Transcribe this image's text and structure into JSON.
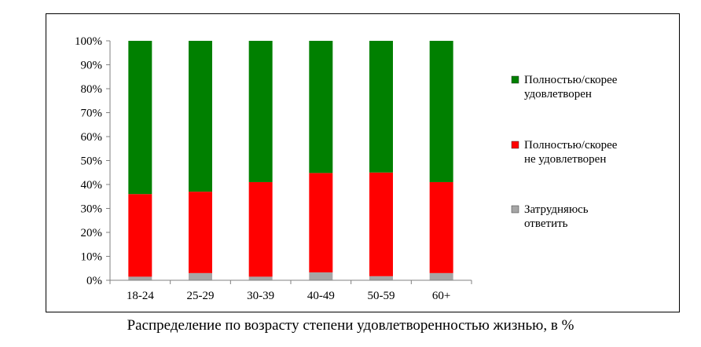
{
  "chart_data": {
    "type": "bar",
    "stacked": true,
    "categories": [
      "18-24",
      "25-29",
      "30-39",
      "40-49",
      "50-59",
      "60+"
    ],
    "series": [
      {
        "name": "Затрудняюсь ответить",
        "color": "#a6a6a6",
        "values": [
          1.5,
          3,
          1.5,
          3.3,
          1.7,
          3
        ]
      },
      {
        "name": "Полностью/скорее не удовлетворен",
        "color": "#ff0000",
        "values": [
          34.5,
          34,
          39.5,
          41.5,
          43.3,
          38
        ]
      },
      {
        "name": "Полностью/скорее удовлетворен",
        "color": "#008000",
        "values": [
          64,
          63,
          59,
          55.2,
          55,
          59
        ]
      }
    ],
    "legend_lines": [
      [
        "Полностью/скорее",
        "удовлетворен"
      ],
      [
        "Полностью/скорее",
        "не удовлетворен"
      ],
      [
        "Затрудняюсь",
        "ответить"
      ]
    ],
    "yticks": [
      "0%",
      "10%",
      "20%",
      "30%",
      "40%",
      "50%",
      "60%",
      "70%",
      "80%",
      "90%",
      "100%"
    ],
    "ylim": [
      0,
      100
    ],
    "grid": false,
    "legend_position": "right"
  },
  "caption": "Распределение по возрасту степени удовлетворенностью жизнью, в %"
}
